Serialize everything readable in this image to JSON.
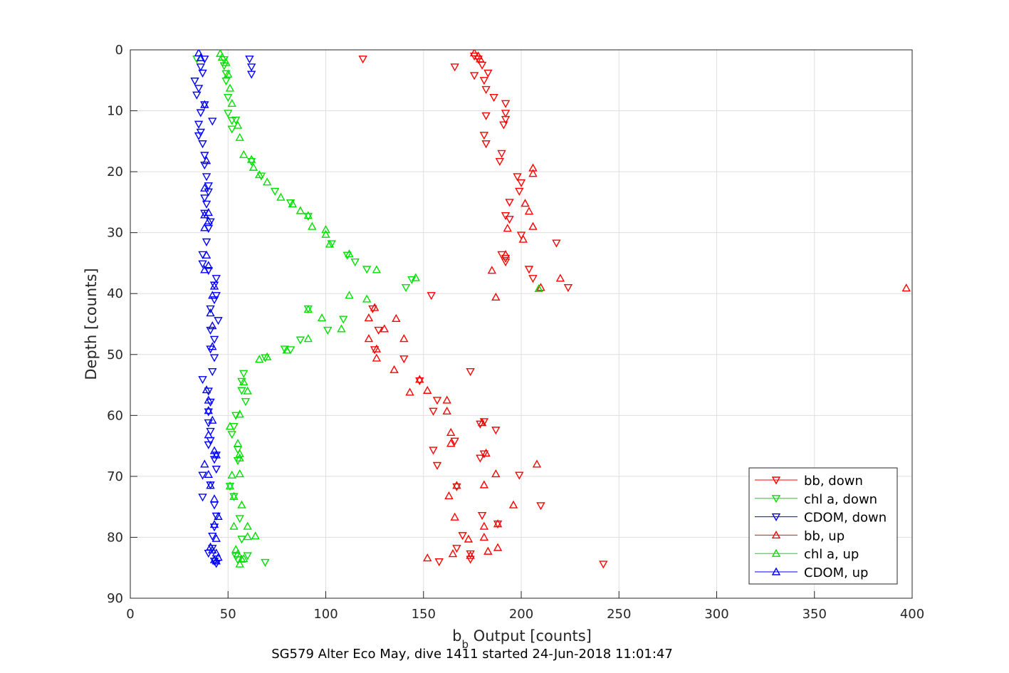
{
  "chart_data": {
    "type": "scatter",
    "title": "SG579 Alter Eco May, dive 1411 started 24-Jun-2018 11:01:47",
    "xlabel_main": "b",
    "xlabel_sub": "b",
    "xlabel_rest": " Output [counts]",
    "ylabel": "Depth [counts]",
    "xlim": [
      0,
      400
    ],
    "ylim": [
      0,
      90
    ],
    "y_reversed": true,
    "xticks": [
      0,
      50,
      100,
      150,
      200,
      250,
      300,
      350,
      400
    ],
    "yticks": [
      0,
      10,
      20,
      30,
      40,
      50,
      60,
      70,
      80,
      90
    ],
    "grid": true,
    "legend_position": "bottom-right",
    "series": [
      {
        "name": "bb, down",
        "color": "#ff0000",
        "marker": "triangle-down",
        "points": [
          [
            119,
            1.5
          ],
          [
            166,
            2.8
          ],
          [
            176,
            1
          ],
          [
            178,
            1.5
          ],
          [
            180,
            2.5
          ],
          [
            176,
            4.2
          ],
          [
            183,
            3.8
          ],
          [
            181,
            5
          ],
          [
            182,
            6.5
          ],
          [
            186,
            7.8
          ],
          [
            192,
            8.8
          ],
          [
            192,
            10.4
          ],
          [
            182,
            10.8
          ],
          [
            192,
            11.4
          ],
          [
            191,
            12.3
          ],
          [
            181,
            14
          ],
          [
            182,
            15.4
          ],
          [
            190,
            17
          ],
          [
            189,
            18.3
          ],
          [
            198,
            20.8
          ],
          [
            200,
            21.8
          ],
          [
            199,
            23.2
          ],
          [
            194,
            25
          ],
          [
            192,
            27.2
          ],
          [
            194,
            27.8
          ],
          [
            200,
            30.4
          ],
          [
            218,
            31.7
          ],
          [
            190,
            33.6
          ],
          [
            192,
            34.2
          ],
          [
            192,
            34.8
          ],
          [
            204,
            36
          ],
          [
            206,
            37.5
          ],
          [
            224,
            39
          ],
          [
            154,
            40.3
          ],
          [
            124,
            42.5
          ],
          [
            127,
            46
          ],
          [
            125,
            49.2
          ],
          [
            140,
            50.7
          ],
          [
            148,
            54.3
          ],
          [
            174,
            52.8
          ],
          [
            157,
            57.5
          ],
          [
            155,
            59.3
          ],
          [
            181,
            61
          ],
          [
            179,
            61.4
          ],
          [
            166,
            64.2
          ],
          [
            187,
            62.4
          ],
          [
            155,
            65.7
          ],
          [
            181,
            66.3
          ],
          [
            157,
            68.2
          ],
          [
            179,
            67
          ],
          [
            199,
            69.8
          ],
          [
            167,
            71.7
          ],
          [
            210,
            74.8
          ],
          [
            180,
            76.4
          ],
          [
            188,
            77.8
          ],
          [
            170,
            79.7
          ],
          [
            167,
            81.8
          ],
          [
            174,
            82.7
          ],
          [
            174,
            83.6
          ],
          [
            158,
            84
          ],
          [
            242,
            84.4
          ]
        ]
      },
      {
        "name": "chl a, down",
        "color": "#00e000",
        "marker": "triangle-down",
        "points": [
          [
            34,
            1.5
          ],
          [
            48,
            1.6
          ],
          [
            48,
            2.6
          ],
          [
            49,
            3.9
          ],
          [
            49,
            5.1
          ],
          [
            50,
            7.8
          ],
          [
            50,
            10.4
          ],
          [
            52,
            11.6
          ],
          [
            54,
            11.5
          ],
          [
            52,
            13
          ],
          [
            62,
            18.3
          ],
          [
            67,
            20.7
          ],
          [
            74,
            23.2
          ],
          [
            82,
            25.1
          ],
          [
            91,
            27.3
          ],
          [
            103,
            31.8
          ],
          [
            111,
            33.7
          ],
          [
            115,
            34.8
          ],
          [
            121,
            36
          ],
          [
            144,
            37.7
          ],
          [
            141,
            39
          ],
          [
            91,
            42.5
          ],
          [
            109,
            44.2
          ],
          [
            101,
            46
          ],
          [
            87,
            47.6
          ],
          [
            82,
            49.2
          ],
          [
            79,
            49.1
          ],
          [
            69,
            50.5
          ],
          [
            58,
            53.1
          ],
          [
            57,
            54.4
          ],
          [
            57,
            55.9
          ],
          [
            59,
            57.7
          ],
          [
            54,
            60
          ],
          [
            53,
            61.8
          ],
          [
            52,
            63.1
          ],
          [
            55,
            65.6
          ],
          [
            55,
            67.4
          ],
          [
            51,
            71.6
          ],
          [
            53,
            73.3
          ],
          [
            56,
            76.9
          ],
          [
            57,
            80.3
          ],
          [
            54,
            83.1
          ],
          [
            60,
            83
          ],
          [
            55,
            83.7
          ],
          [
            69,
            84.1
          ]
        ]
      },
      {
        "name": "CDOM, down",
        "color": "#0000ff",
        "marker": "triangle-down",
        "points": [
          [
            61,
            1.5
          ],
          [
            62,
            2.8
          ],
          [
            62,
            4
          ],
          [
            38,
            1.5
          ],
          [
            36,
            2.8
          ],
          [
            37,
            3.8
          ],
          [
            33,
            5.1
          ],
          [
            35,
            6.3
          ],
          [
            34,
            7.4
          ],
          [
            38,
            9
          ],
          [
            36,
            10.3
          ],
          [
            42,
            11.7
          ],
          [
            35,
            12.2
          ],
          [
            36,
            13.5
          ],
          [
            35,
            14.1
          ],
          [
            37,
            15.4
          ],
          [
            38,
            17.3
          ],
          [
            38,
            18.9
          ],
          [
            39,
            20.8
          ],
          [
            40,
            22.3
          ],
          [
            40,
            23.3
          ],
          [
            38,
            24.3
          ],
          [
            39,
            25.3
          ],
          [
            38,
            26.8
          ],
          [
            41,
            28.2
          ],
          [
            40,
            29.3
          ],
          [
            39,
            31.5
          ],
          [
            37,
            33.6
          ],
          [
            37,
            35.1
          ],
          [
            40,
            36.2
          ],
          [
            44,
            37.5
          ],
          [
            43,
            38.6
          ],
          [
            44,
            40.3
          ],
          [
            43,
            41
          ],
          [
            41,
            42.5
          ],
          [
            45,
            44.4
          ],
          [
            41,
            46
          ],
          [
            43,
            47.5
          ],
          [
            41,
            49.1
          ],
          [
            43,
            50.5
          ],
          [
            42,
            52.8
          ],
          [
            37,
            54.1
          ],
          [
            40,
            56
          ],
          [
            41,
            57.8
          ],
          [
            40,
            59.4
          ],
          [
            40,
            61.2
          ],
          [
            41,
            62.6
          ],
          [
            41,
            64.1
          ],
          [
            40,
            64.8
          ],
          [
            44,
            66.5
          ],
          [
            43,
            67.2
          ],
          [
            44,
            68.8
          ],
          [
            37,
            69.8
          ],
          [
            41,
            71.4
          ],
          [
            37,
            73.4
          ],
          [
            43,
            74.7
          ],
          [
            44,
            76.5
          ],
          [
            43,
            78.3
          ],
          [
            42,
            79.8
          ],
          [
            42,
            81.8
          ],
          [
            40,
            82.6
          ],
          [
            43,
            83.9
          ],
          [
            44,
            84.3
          ]
        ]
      },
      {
        "name": "bb, up",
        "color": "#ff0000",
        "marker": "triangle-up",
        "points": [
          [
            176,
            0.5
          ],
          [
            178,
            1
          ],
          [
            179,
            1.5
          ],
          [
            206,
            19.4
          ],
          [
            206,
            20.3
          ],
          [
            202,
            25.2
          ],
          [
            204,
            26.5
          ],
          [
            193,
            29.3
          ],
          [
            206,
            29
          ],
          [
            201,
            31.1
          ],
          [
            192,
            33.6
          ],
          [
            185,
            36.2
          ],
          [
            220,
            37.5
          ],
          [
            210,
            39
          ],
          [
            397,
            39.1
          ],
          [
            187,
            40.6
          ],
          [
            125,
            42.3
          ],
          [
            122,
            44
          ],
          [
            136,
            44.1
          ],
          [
            130,
            45.8
          ],
          [
            122,
            47.4
          ],
          [
            140,
            47.4
          ],
          [
            126,
            49.1
          ],
          [
            126,
            50.6
          ],
          [
            135,
            52.5
          ],
          [
            148,
            54.1
          ],
          [
            143,
            56.2
          ],
          [
            152,
            55.9
          ],
          [
            162,
            57.5
          ],
          [
            162,
            59.3
          ],
          [
            180,
            61.2
          ],
          [
            164,
            62.8
          ],
          [
            164,
            64.6
          ],
          [
            182,
            66.2
          ],
          [
            208,
            68
          ],
          [
            187,
            69.6
          ],
          [
            167,
            71.5
          ],
          [
            163,
            73.2
          ],
          [
            181,
            71.4
          ],
          [
            196,
            74.7
          ],
          [
            166,
            76.7
          ],
          [
            181,
            78.2
          ],
          [
            188,
            77.8
          ],
          [
            181,
            80
          ],
          [
            173,
            80.3
          ],
          [
            188,
            81.7
          ],
          [
            165,
            82.7
          ],
          [
            152,
            83.4
          ],
          [
            174,
            83
          ],
          [
            183,
            82.3
          ]
        ]
      },
      {
        "name": "chl a, up",
        "color": "#00e000",
        "marker": "triangle-up",
        "points": [
          [
            46,
            0.6
          ],
          [
            47,
            1.2
          ],
          [
            49,
            2.1
          ],
          [
            50,
            4
          ],
          [
            51,
            6.3
          ],
          [
            52,
            8.8
          ],
          [
            55,
            12.4
          ],
          [
            56,
            14.4
          ],
          [
            58,
            17.2
          ],
          [
            62,
            18
          ],
          [
            63,
            19.3
          ],
          [
            66,
            20.5
          ],
          [
            70,
            21.7
          ],
          [
            77,
            24.2
          ],
          [
            83,
            25.3
          ],
          [
            87,
            26.4
          ],
          [
            91,
            27.2
          ],
          [
            93,
            29
          ],
          [
            100,
            29.5
          ],
          [
            100,
            30.3
          ],
          [
            102,
            31.9
          ],
          [
            112,
            33.5
          ],
          [
            126,
            36.1
          ],
          [
            146,
            37.4
          ],
          [
            209,
            39.2
          ],
          [
            112,
            40.3
          ],
          [
            121,
            40.9
          ],
          [
            91,
            42.6
          ],
          [
            98,
            44
          ],
          [
            108,
            45.8
          ],
          [
            91,
            47.4
          ],
          [
            80,
            49.3
          ],
          [
            70,
            50.4
          ],
          [
            66,
            50.8
          ],
          [
            60,
            56
          ],
          [
            58,
            54.5
          ],
          [
            56,
            59.8
          ],
          [
            51,
            61.8
          ],
          [
            55,
            64.6
          ],
          [
            56,
            66.3
          ],
          [
            56,
            67
          ],
          [
            56,
            69.6
          ],
          [
            52,
            69.8
          ],
          [
            51,
            71.6
          ],
          [
            53,
            73.3
          ],
          [
            57,
            74.7
          ],
          [
            60,
            78.2
          ],
          [
            53,
            78.2
          ],
          [
            60,
            79.9
          ],
          [
            64,
            79.8
          ],
          [
            54,
            82
          ],
          [
            55,
            82.7
          ],
          [
            56,
            84.4
          ],
          [
            58,
            83.5
          ],
          [
            57,
            83.6
          ]
        ]
      },
      {
        "name": "CDOM, up",
        "color": "#0000ff",
        "marker": "triangle-up",
        "points": [
          [
            35,
            0.5
          ],
          [
            36,
            1.3
          ],
          [
            38,
            9
          ],
          [
            39,
            18.2
          ],
          [
            38,
            22.7
          ],
          [
            40,
            26.7
          ],
          [
            38,
            27.1
          ],
          [
            40,
            28.1
          ],
          [
            38,
            29.2
          ],
          [
            39,
            33.7
          ],
          [
            40,
            35.4
          ],
          [
            38,
            36.1
          ],
          [
            43,
            38.8
          ],
          [
            42,
            40.3
          ],
          [
            41,
            43.2
          ],
          [
            42,
            45.3
          ],
          [
            42,
            48.7
          ],
          [
            39,
            55.8
          ],
          [
            40,
            57.5
          ],
          [
            40,
            59.2
          ],
          [
            42,
            60.8
          ],
          [
            40,
            63.2
          ],
          [
            43,
            65.8
          ],
          [
            44,
            66.5
          ],
          [
            38,
            68
          ],
          [
            40,
            69.7
          ],
          [
            41,
            71.5
          ],
          [
            43,
            73.7
          ],
          [
            45,
            76.6
          ],
          [
            43,
            77.9
          ],
          [
            44,
            80.2
          ],
          [
            41,
            81.6
          ],
          [
            42,
            82.1
          ],
          [
            44,
            82.6
          ],
          [
            45,
            83.3
          ],
          [
            43,
            83.7
          ],
          [
            44,
            83.9
          ]
        ]
      }
    ]
  }
}
